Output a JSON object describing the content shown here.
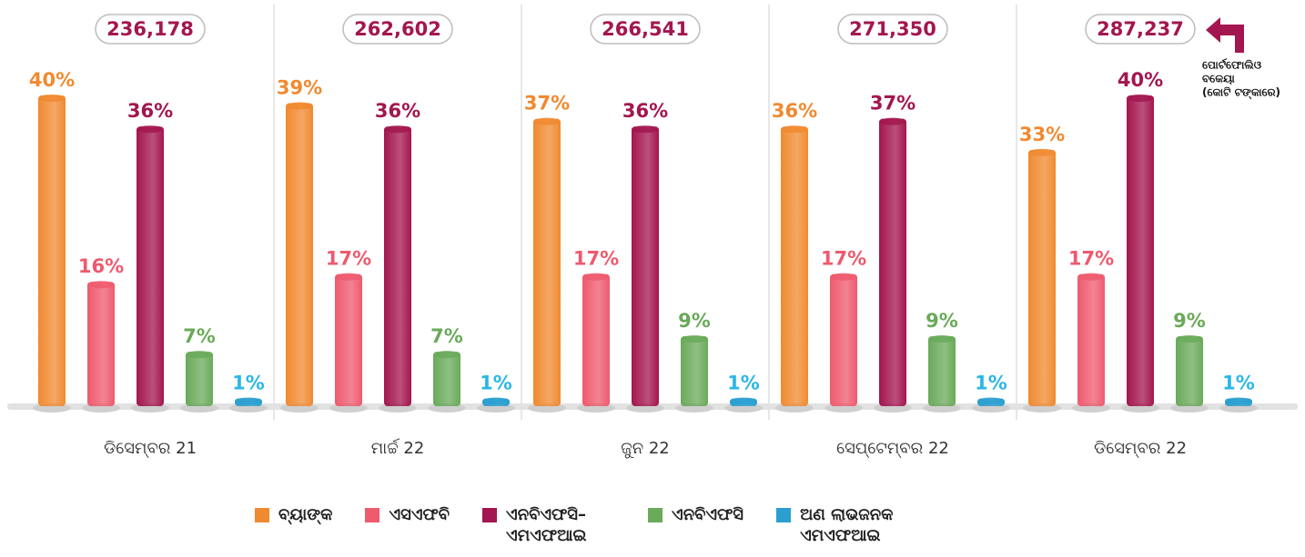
{
  "chart_data": {
    "type": "bar",
    "categories": [
      "ଡିସେମ୍ବର 21",
      "ମାର୍ଚ୍ଚ 22",
      "ଜୁନ 22",
      "ସେପ୍ଟେମ୍ବର 22",
      "ଡିସେମ୍ବର 22"
    ],
    "totals": [
      236178,
      262602,
      266541,
      271350,
      287237
    ],
    "total_labels": [
      "236,178",
      "262,602",
      "266,541",
      "271,350",
      "287,237"
    ],
    "annotation": [
      "ପୋର୍ଟଫୋଲିଓ",
      "ବକେୟା",
      "(କୋଟି ଟଙ୍କାରେ)"
    ],
    "series": [
      {
        "name": "ବ୍ୟାଙ୍କ",
        "color": "#f08a30",
        "values": [
          40,
          39,
          37,
          36,
          33
        ],
        "value_labels": [
          "40%",
          "39%",
          "37%",
          "36%",
          "33%"
        ]
      },
      {
        "name": "ଏସଏଫବି",
        "color": "#ee5a6e",
        "values": [
          16,
          17,
          17,
          17,
          17
        ],
        "value_labels": [
          "16%",
          "17%",
          "17%",
          "17%",
          "17%"
        ]
      },
      {
        "name": "ଏନବିଏଫସି–ଏମଏଫଆଇ",
        "color": "#a3164f",
        "values": [
          36,
          36,
          36,
          37,
          40
        ],
        "value_labels": [
          "36%",
          "36%",
          "36%",
          "37%",
          "40%"
        ]
      },
      {
        "name": "ଏନବିଏଫସି",
        "color": "#6aaa5a",
        "values": [
          7,
          7,
          9,
          9,
          9
        ],
        "value_labels": [
          "7%",
          "7%",
          "9%",
          "9%",
          "9%"
        ]
      },
      {
        "name": "ଅଣ ଲାଭଜନକ ଏମଏଫଆଇ",
        "color": "#2a9fd0",
        "values": [
          1,
          1,
          1,
          1,
          1
        ],
        "value_labels": [
          "1%",
          "1%",
          "1%",
          "1%",
          "1%"
        ]
      }
    ]
  }
}
